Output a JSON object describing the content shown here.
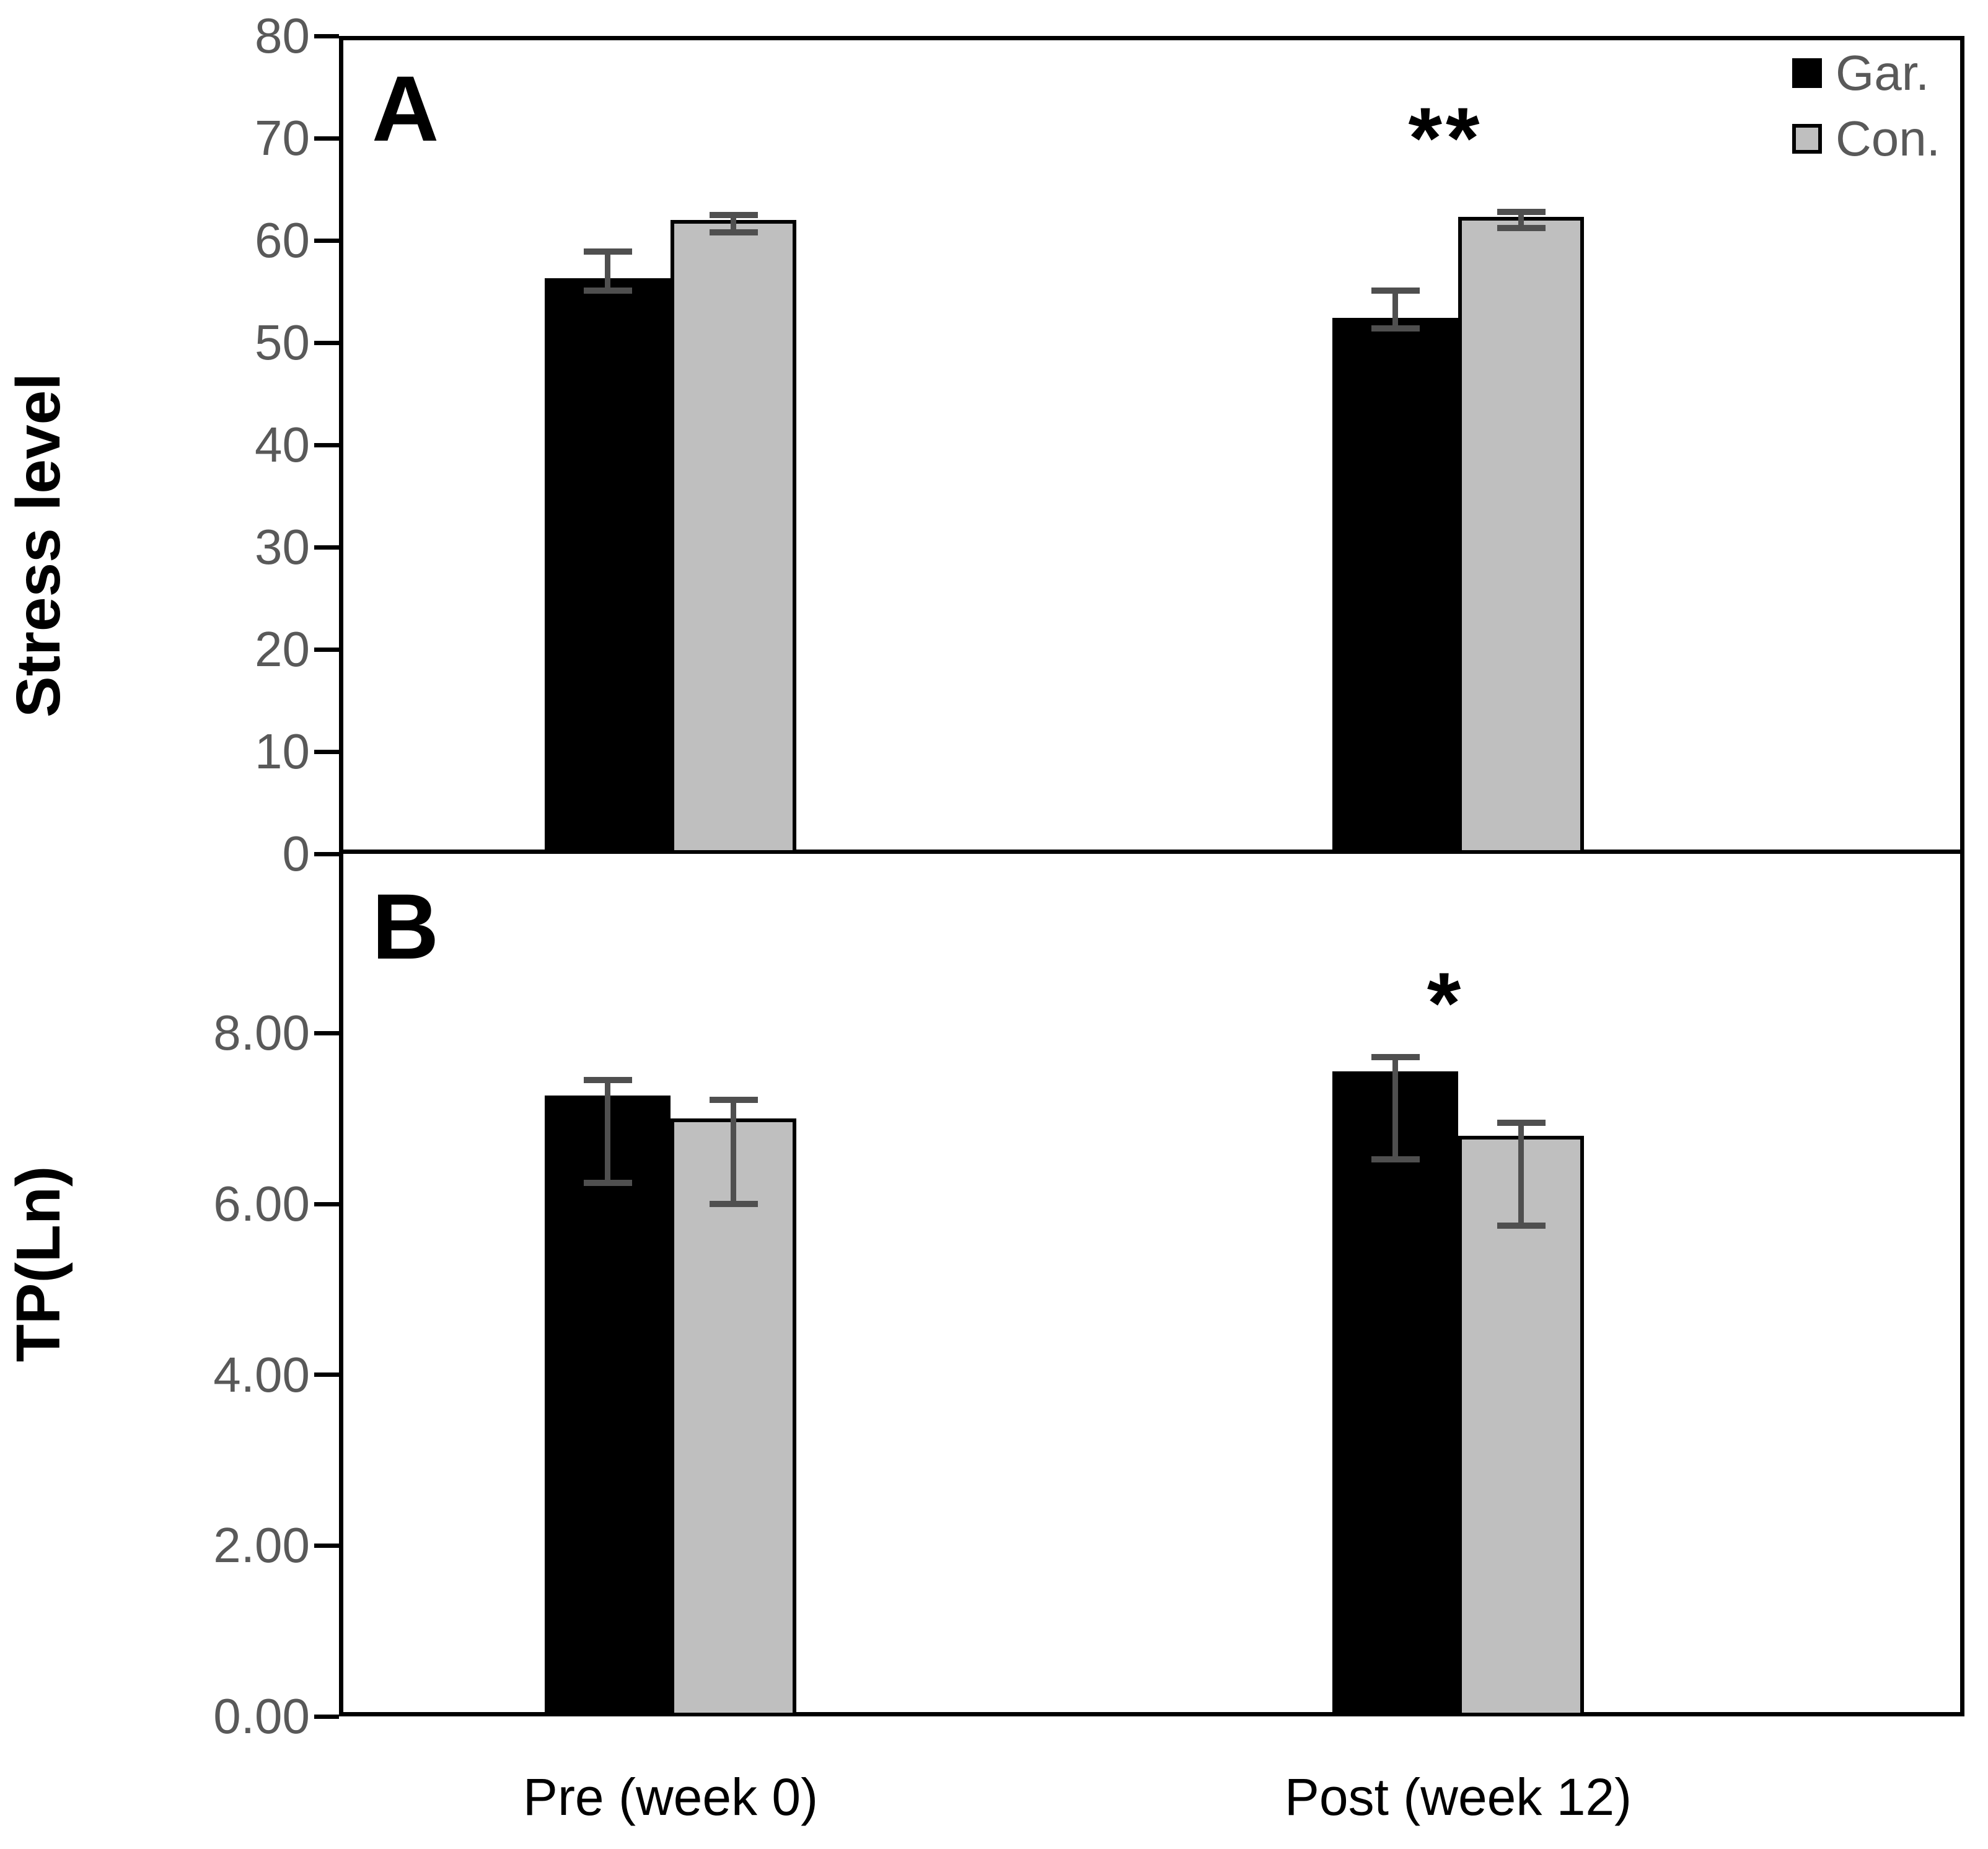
{
  "figure": {
    "background": "#ffffff",
    "accent_black": "#000000",
    "accent_gray": "#bfbfbf",
    "tick_text_color": "#595959",
    "error_bar_color": "#4f4f4f"
  },
  "legend": {
    "items": [
      {
        "label": "Gar.",
        "color": "#000000"
      },
      {
        "label": "Con.",
        "color": "#bfbfbf"
      }
    ]
  },
  "x_axis": {
    "categories": [
      "Pre (week 0)",
      "Post (week 12)"
    ]
  },
  "chart_data": [
    {
      "type": "bar",
      "panel_letter": "A",
      "ylabel": "Stress level",
      "ylim": [
        0,
        80
      ],
      "grid": false,
      "legend_position": "top-right-inside",
      "yticks": [
        {
          "v": 0,
          "label": "0"
        },
        {
          "v": 10,
          "label": "10"
        },
        {
          "v": 20,
          "label": "20"
        },
        {
          "v": 30,
          "label": "30"
        },
        {
          "v": 40,
          "label": "40"
        },
        {
          "v": 50,
          "label": "50"
        },
        {
          "v": 60,
          "label": "60"
        },
        {
          "v": 70,
          "label": "70"
        },
        {
          "v": 80,
          "label": "80"
        }
      ],
      "categories": [
        "Pre (week 0)",
        "Post (week 12)"
      ],
      "series": [
        {
          "name": "Gar.",
          "color": "#000000",
          "values": [
            56.3,
            52.4
          ],
          "error_hi": [
            58.9,
            55.1
          ],
          "error_lo": [
            55.1,
            51.4
          ]
        },
        {
          "name": "Con.",
          "color": "#bfbfbf",
          "values": [
            62.0,
            62.3
          ],
          "error_hi": [
            62.5,
            62.8
          ],
          "error_lo": [
            60.8,
            61.2
          ]
        }
      ],
      "annotations": [
        {
          "text": "**",
          "category_index": 1,
          "y": 70
        }
      ]
    },
    {
      "type": "bar",
      "panel_letter": "B",
      "ylabel": "TP(Ln)",
      "ylim": [
        0,
        10.1
      ],
      "grid": false,
      "yticks": [
        {
          "v": 0,
          "label": "0.00"
        },
        {
          "v": 2,
          "label": "2.00"
        },
        {
          "v": 4,
          "label": "4.00"
        },
        {
          "v": 6,
          "label": "6.00"
        },
        {
          "v": 8,
          "label": "8.00"
        }
      ],
      "categories": [
        "Pre (week 0)",
        "Post (week 12)"
      ],
      "series": [
        {
          "name": "Gar.",
          "color": "#000000",
          "values": [
            7.27,
            7.55
          ],
          "error_hi": [
            7.45,
            7.72
          ],
          "error_lo": [
            6.25,
            6.52
          ]
        },
        {
          "name": "Con.",
          "color": "#bfbfbf",
          "values": [
            7.0,
            6.8
          ],
          "error_hi": [
            7.22,
            6.95
          ],
          "error_lo": [
            6.0,
            5.75
          ]
        }
      ],
      "annotations": [
        {
          "text": "*",
          "category_index": 1,
          "y": 8.35
        }
      ]
    }
  ]
}
